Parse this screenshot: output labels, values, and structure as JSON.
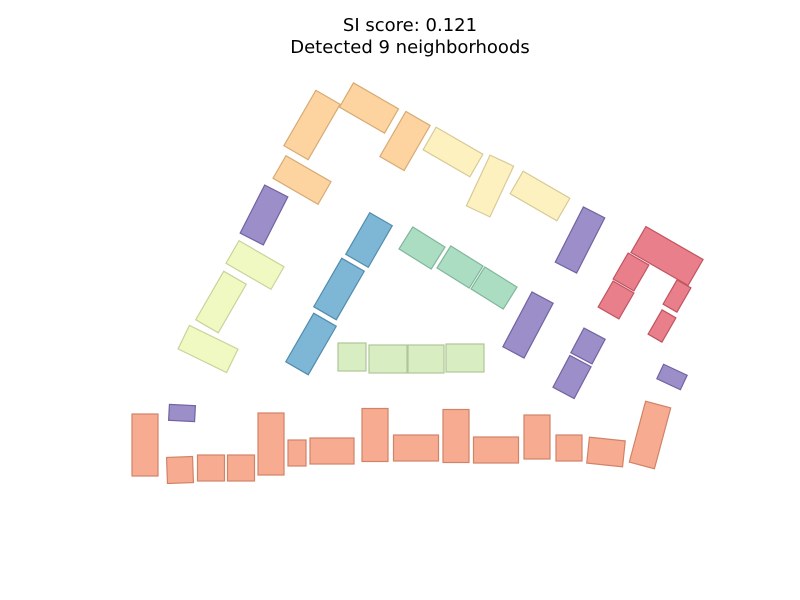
{
  "title": {
    "line1": "SI score: 0.121",
    "line2": "Detected 9 neighborhoods"
  },
  "colors": {
    "c1": "#f59a79",
    "c2": "#8675bd",
    "c3": "#fcc98a",
    "c4": "#fdeeb1",
    "c5": "#eef8b6",
    "c6": "#cfe9b3",
    "c7": "#98d6b6",
    "c8": "#61a6cd",
    "c9": "#e36371"
  },
  "neighborhoods": [
    {
      "id": "n1",
      "color_key": "c1",
      "building_count": 16
    },
    {
      "id": "n2",
      "color_key": "c2",
      "building_count": 7
    },
    {
      "id": "n3",
      "color_key": "c3",
      "building_count": 4
    },
    {
      "id": "n4",
      "color_key": "c4",
      "building_count": 3
    },
    {
      "id": "n5",
      "color_key": "c5",
      "building_count": 3
    },
    {
      "id": "n6",
      "color_key": "c6",
      "building_count": 4
    },
    {
      "id": "n7",
      "color_key": "c7",
      "building_count": 3
    },
    {
      "id": "n8",
      "color_key": "c8",
      "building_count": 3
    },
    {
      "id": "n9",
      "color_key": "c9",
      "building_count": 5
    }
  ]
}
